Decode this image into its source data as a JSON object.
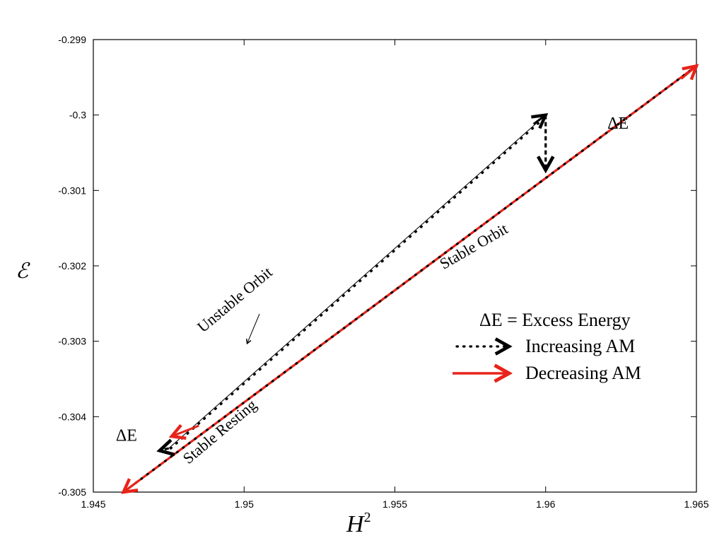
{
  "chart_data": {
    "type": "line",
    "xlabel": "H",
    "xlabel_superscript": "2",
    "ylabel": "ℰ",
    "xlim": [
      1.945,
      1.965
    ],
    "ylim": [
      -0.305,
      -0.299
    ],
    "xticks": [
      {
        "value": 1.945,
        "label": "1.945"
      },
      {
        "value": 1.95,
        "label": "1.95"
      },
      {
        "value": 1.955,
        "label": "1.955"
      },
      {
        "value": 1.96,
        "label": "1.96"
      },
      {
        "value": 1.965,
        "label": "1.965"
      }
    ],
    "yticks": [
      {
        "value": -0.299,
        "label": "-0.299"
      },
      {
        "value": -0.3,
        "label": "-0.3"
      },
      {
        "value": -0.301,
        "label": "-0.301"
      },
      {
        "value": -0.302,
        "label": "-0.302"
      },
      {
        "value": -0.303,
        "label": "-0.303"
      },
      {
        "value": -0.304,
        "label": "-0.304"
      },
      {
        "value": -0.305,
        "label": "-0.305"
      }
    ],
    "series": [
      {
        "name": "Stable Orbit",
        "color": "#e8231a",
        "points": [
          [
            1.946,
            -0.305
          ],
          [
            1.965,
            -0.29935
          ]
        ]
      },
      {
        "name": "Unstable Orbit",
        "color": "#000000",
        "points": [
          [
            1.9475,
            -0.30442
          ],
          [
            1.96,
            -0.3
          ]
        ]
      },
      {
        "name": "Increasing AM (upper)",
        "color": "#000000",
        "style": "dotted",
        "points": [
          [
            1.9475,
            -0.30442
          ],
          [
            1.96,
            -0.3
          ]
        ]
      },
      {
        "name": "Increasing AM (lower)",
        "color": "#000000",
        "style": "dotted",
        "points": [
          [
            1.946,
            -0.305
          ],
          [
            1.965,
            -0.29935
          ]
        ]
      }
    ],
    "arrows": [
      {
        "name": "delta-e-arrow-top",
        "color": "#000000",
        "style": "dashed",
        "from": [
          1.96,
          -0.3
        ],
        "to": [
          1.96,
          -0.30073
        ]
      },
      {
        "name": "delta-e-arrow-bottom",
        "color": "#000000",
        "style": "dashed",
        "from": [
          1.9475,
          -0.30442
        ],
        "to": [
          1.9472,
          -0.30445
        ]
      },
      {
        "name": "red-arrow-top-right",
        "color": "#e8231a",
        "from": [
          1.9645,
          -0.29952
        ],
        "to": [
          1.965,
          -0.29935
        ]
      },
      {
        "name": "red-arrow-bottom-left",
        "color": "#e8231a",
        "from": [
          1.9465,
          -0.30485
        ],
        "to": [
          1.946,
          -0.305
        ]
      },
      {
        "name": "red-arrow-unstable",
        "color": "#e8231a",
        "from": [
          1.9485,
          -0.30412
        ],
        "to": [
          1.9476,
          -0.30426
        ]
      },
      {
        "name": "black-arrow-top",
        "color": "#000000",
        "from": [
          1.9596,
          -0.30012
        ],
        "to": [
          1.96,
          -0.3
        ]
      }
    ],
    "annotations": [
      {
        "name": "annotation-unstable-orbit",
        "text": "Unstable Orbit",
        "x": 1.9498,
        "y": -0.3025,
        "rotate": -40,
        "size": 22
      },
      {
        "name": "annotation-stable-orbit",
        "text": "Stable Orbit",
        "x": 1.9577,
        "y": -0.3018,
        "rotate": -30,
        "size": 22
      },
      {
        "name": "annotation-stable-resting",
        "text": "Stable Resting",
        "x": 1.9493,
        "y": -0.30425,
        "rotate": -40,
        "size": 22
      },
      {
        "name": "annotation-delta-e-top",
        "text": "ΔE",
        "x": 1.9624,
        "y": -0.30018,
        "rotate": 0,
        "size": 24
      },
      {
        "name": "annotation-delta-e-bottom",
        "text": "ΔE",
        "x": 1.9461,
        "y": -0.30432,
        "rotate": 0,
        "size": 24
      }
    ],
    "legend": {
      "position": "right",
      "title": "ΔE = Excess Energy",
      "entries": [
        {
          "label": "Increasing AM",
          "color": "#000000",
          "style": "dotted"
        },
        {
          "label": "Decreasing AM",
          "color": "#e8231a",
          "style": "solid"
        }
      ]
    }
  }
}
